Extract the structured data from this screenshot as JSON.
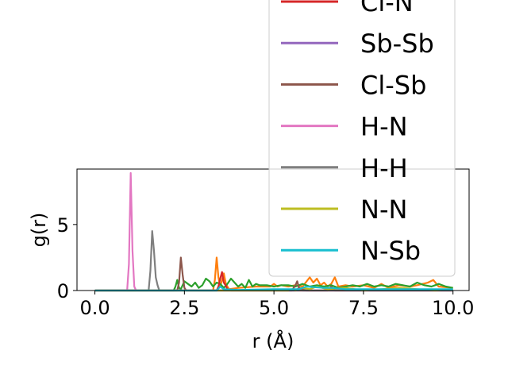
{
  "chart_data": {
    "type": "line",
    "xlabel": "r (Å)",
    "ylabel": "g(r)",
    "xlim": [
      -0.5,
      10.45
    ],
    "ylim": [
      0,
      9.2
    ],
    "xticks": [
      0.0,
      2.5,
      5.0,
      7.5,
      10.0
    ],
    "xtick_labels": [
      "0.0",
      "2.5",
      "5.0",
      "7.5",
      "10.0"
    ],
    "yticks": [
      0,
      5
    ],
    "ytick_labels": [
      "0",
      "5"
    ],
    "grid": false,
    "legend_placement": "upper right (extends above the axes)",
    "series": [
      {
        "name": "Cl-N",
        "color": "#d62728",
        "x": [
          0,
          3.4,
          3.45,
          3.5,
          3.55,
          3.6,
          3.65,
          3.7,
          3.8,
          10
        ],
        "y": [
          0,
          0,
          0.3,
          0.9,
          1.4,
          0.6,
          0.4,
          0.1,
          0,
          0
        ]
      },
      {
        "name": "Sb-Sb",
        "color": "#9467bd",
        "x": [
          0,
          5.6,
          5.7,
          5.8,
          10
        ],
        "y": [
          0,
          0,
          0.2,
          0,
          0
        ]
      },
      {
        "name": "Cl-Sb",
        "color": "#8c564b",
        "x": [
          0,
          2.3,
          2.35,
          2.4,
          2.45,
          2.5,
          2.55,
          5.5,
          5.6,
          5.65,
          5.7,
          5.9,
          6.5,
          6.6,
          6.7,
          10
        ],
        "y": [
          0,
          0,
          0.6,
          2.5,
          1.2,
          0.2,
          0,
          0,
          0.4,
          0.7,
          0.2,
          0,
          0,
          0.3,
          0,
          0
        ]
      },
      {
        "name": "H-N",
        "color": "#e377c2",
        "x": [
          0,
          0.9,
          0.95,
          1.0,
          1.05,
          1.1,
          1.15,
          10
        ],
        "y": [
          0,
          0,
          2.0,
          8.9,
          3.0,
          0.3,
          0,
          0
        ]
      },
      {
        "name": "H-H",
        "color": "#7f7f7f",
        "x": [
          0,
          1.5,
          1.55,
          1.6,
          1.65,
          1.7,
          1.75,
          1.8,
          1.9,
          10
        ],
        "y": [
          0,
          0,
          1.5,
          4.5,
          3.0,
          1.0,
          0.4,
          0,
          0,
          0
        ]
      },
      {
        "name": "N-N",
        "color": "#bcbd22",
        "x": [
          0,
          5.4,
          5.5,
          5.6,
          5.8,
          6.0,
          6.2,
          6.5,
          7.0,
          7.5,
          8.0,
          8.5,
          9.0,
          9.5,
          10
        ],
        "y": [
          0,
          0,
          0.1,
          0,
          0.2,
          0.1,
          0.3,
          0.1,
          0.2,
          0,
          0.1,
          0.2,
          0.1,
          0,
          0.1
        ]
      },
      {
        "name": "N-Sb",
        "color": "#17becf",
        "x": [
          0,
          3.4,
          3.5,
          3.6,
          4.0,
          5.0,
          5.7,
          5.9,
          6.4,
          6.6,
          7.0,
          8.0,
          9.0,
          10
        ],
        "y": [
          0,
          0,
          0.3,
          0.1,
          0.05,
          0.1,
          0.1,
          0.3,
          0.2,
          0.2,
          0.1,
          0.1,
          0.1,
          0.1
        ]
      },
      {
        "name": "",
        "color": "#ff7f0e",
        "x": [
          0,
          3.3,
          3.35,
          3.4,
          3.45,
          3.5,
          3.55,
          3.6,
          3.65,
          3.7,
          3.75,
          4.0,
          4.5,
          4.9,
          5.0,
          5.1,
          5.2,
          5.4,
          5.6,
          5.8,
          6.0,
          6.1,
          6.2,
          6.3,
          6.4,
          6.5,
          6.6,
          6.7,
          6.8,
          7.0,
          7.2,
          7.5,
          7.8,
          8.0,
          8.2,
          8.5,
          8.8,
          9.0,
          9.3,
          9.45,
          9.6,
          10
        ],
        "y": [
          0,
          0,
          0.8,
          2.5,
          1.0,
          0.3,
          0.8,
          1.3,
          0.6,
          0.3,
          0.1,
          0.2,
          0.3,
          0.3,
          0.5,
          0.3,
          0.4,
          0.3,
          0.4,
          0.3,
          1.0,
          0.6,
          0.9,
          0.4,
          0.6,
          0.3,
          0.5,
          1.0,
          0.3,
          0.4,
          0.3,
          0.4,
          0.2,
          0.5,
          0.2,
          0.4,
          0.3,
          0.4,
          0.6,
          0.8,
          0.3,
          0.2
        ]
      },
      {
        "name": "",
        "color": "#2ca02c",
        "x": [
          0,
          2.2,
          2.25,
          2.3,
          2.35,
          2.4,
          2.5,
          2.6,
          2.7,
          2.8,
          2.9,
          3.0,
          3.1,
          3.2,
          3.3,
          3.4,
          3.5,
          3.6,
          3.7,
          3.8,
          3.9,
          4.0,
          4.1,
          4.2,
          4.3,
          4.4,
          4.5,
          4.6,
          4.8,
          5.0,
          5.2,
          5.4,
          5.6,
          5.8,
          6.0,
          6.2,
          6.4,
          6.6,
          6.8,
          7.0,
          7.2,
          7.4,
          7.6,
          7.8,
          8.0,
          8.2,
          8.4,
          8.6,
          8.8,
          9.0,
          9.2,
          9.4,
          9.6,
          9.8,
          10
        ],
        "y": [
          0,
          0,
          0.3,
          0.8,
          0.2,
          0.1,
          0.7,
          0.5,
          0.3,
          0.6,
          0.2,
          0.4,
          0.9,
          0.7,
          0.3,
          0.6,
          0.5,
          0.2,
          0.5,
          0.9,
          0.6,
          0.3,
          0.5,
          0.2,
          0.8,
          0.3,
          0.5,
          0.4,
          0.4,
          0.3,
          0.4,
          0.4,
          0.3,
          0.5,
          0.3,
          0.4,
          0.3,
          0.4,
          0.2,
          0.3,
          0.4,
          0.3,
          0.5,
          0.3,
          0.4,
          0.3,
          0.5,
          0.4,
          0.3,
          0.6,
          0.4,
          0.3,
          0.5,
          0.3,
          0.2
        ]
      }
    ]
  }
}
